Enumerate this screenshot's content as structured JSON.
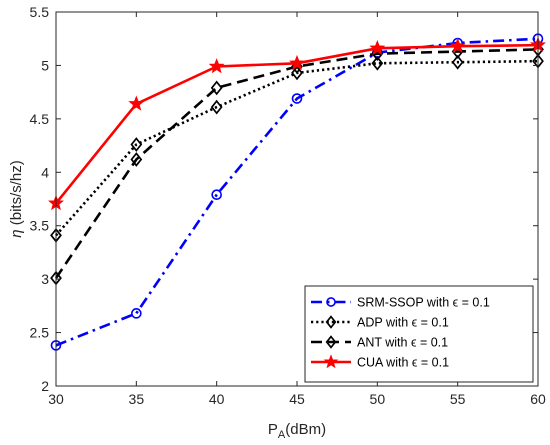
{
  "chart_data": {
    "type": "line",
    "x": [
      30,
      35,
      40,
      45,
      50,
      55,
      60
    ],
    "xlim": [
      30,
      60
    ],
    "ylim": [
      2,
      5.5
    ],
    "xticks": [
      30,
      35,
      40,
      45,
      50,
      55,
      60
    ],
    "yticks": [
      2,
      2.5,
      3,
      3.5,
      4,
      4.5,
      5,
      5.5
    ],
    "xlabel": {
      "main": "P",
      "sub": "A",
      "rest": "(dBm)"
    },
    "ylabel": {
      "symbol": "η",
      "rest": " (bits/s/hz)"
    },
    "grid": false,
    "legend_position": "bottom-right",
    "series": [
      {
        "name": "SRM-SSOP with ϵ = 0.1",
        "color": "#0000ff",
        "dash": "dashdot",
        "marker": "circle",
        "values": [
          2.38,
          2.68,
          3.79,
          4.69,
          5.12,
          5.21,
          5.25
        ]
      },
      {
        "name": "ADP with ϵ = 0.1",
        "color": "#000000",
        "dash": "dotted",
        "marker": "diamond",
        "values": [
          3.41,
          4.26,
          4.61,
          4.93,
          5.02,
          5.03,
          5.04
        ]
      },
      {
        "name": "ANT with ϵ = 0.1",
        "color": "#000000",
        "dash": "dashed",
        "marker": "diamond",
        "values": [
          3.01,
          4.12,
          4.79,
          4.99,
          5.11,
          5.13,
          5.15
        ]
      },
      {
        "name": "CUA with ϵ = 0.1",
        "color": "#ff0000",
        "dash": "solid",
        "marker": "star",
        "values": [
          3.71,
          4.64,
          4.99,
          5.02,
          5.16,
          5.18,
          5.19
        ]
      }
    ]
  }
}
